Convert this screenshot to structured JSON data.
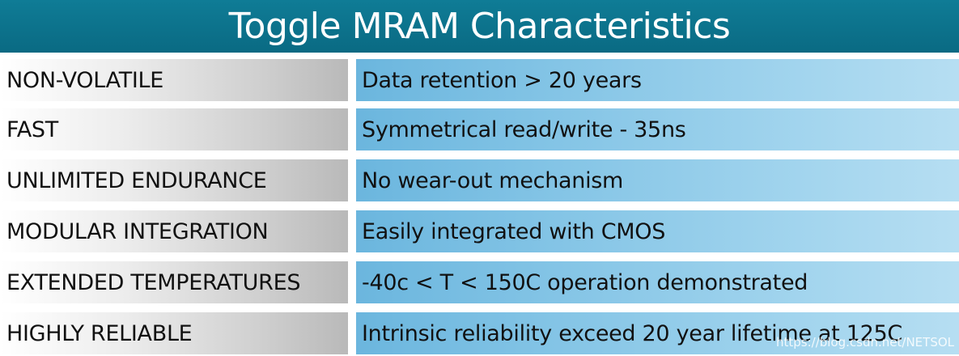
{
  "title": "Toggle MRAM Characteristics",
  "rows": [
    {
      "label": "NON-VOLATILE",
      "value": "Data retention > 20 years"
    },
    {
      "label": "FAST",
      "value": "Symmetrical read/write - 35ns"
    },
    {
      "label": "UNLIMITED ENDURANCE",
      "value": "No wear-out mechanism"
    },
    {
      "label": "MODULAR INTEGRATION",
      "value": "Easily integrated with CMOS"
    },
    {
      "label": "EXTENDED TEMPERATURES",
      "value": "-40c < T < 150C operation demonstrated"
    },
    {
      "label": "HIGHLY RELIABLE",
      "value": "Intrinsic reliability exceed 20 year lifetime at 125C"
    }
  ],
  "watermark": "https://blog.csdn.net/NETSOL",
  "colors": {
    "header": "#0a6a83",
    "label_bg": "#cfcfcf",
    "value_bg": "#85c5e6"
  }
}
